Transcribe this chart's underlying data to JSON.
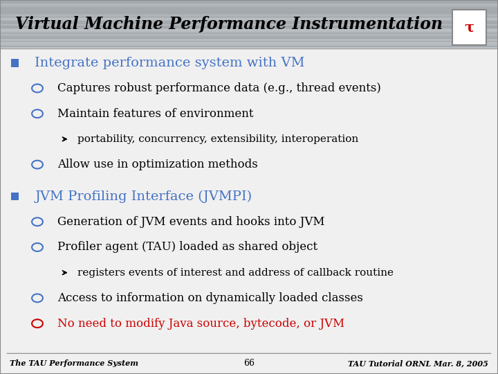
{
  "title": "Virtual Machine Performance Instrumentation",
  "title_color": "#000000",
  "title_bg_color": "#b8bec4",
  "slide_bg_color": "#f0f0f0",
  "footer_left": "The TAU Performance System",
  "footer_center": "66",
  "footer_right": "TAU Tutorial ORNL Mar. 8, 2005",
  "blue_color": "#4472c4",
  "red_color": "#cc0000",
  "content": [
    {
      "level": 1,
      "color": "#4472c4",
      "text": "Integrate performance system with VM",
      "marker": "square"
    },
    {
      "level": 2,
      "color": "#000000",
      "text": "Captures robust performance data (e.g., thread events)",
      "marker": "circle"
    },
    {
      "level": 2,
      "color": "#000000",
      "text": "Maintain features of environment",
      "marker": "circle"
    },
    {
      "level": 3,
      "color": "#000000",
      "text": "portability, concurrency, extensibility, interoperation",
      "marker": "arrow"
    },
    {
      "level": 2,
      "color": "#000000",
      "text": "Allow use in optimization methods",
      "marker": "circle"
    },
    {
      "level": 1,
      "color": "#4472c4",
      "text": "JVM Profiling Interface (JVMPI)",
      "marker": "square"
    },
    {
      "level": 2,
      "color": "#000000",
      "text": "Generation of JVM events and hooks into JVM",
      "marker": "circle"
    },
    {
      "level": 2,
      "color": "#000000",
      "text": "Profiler agent (TAU) loaded as shared object",
      "marker": "circle"
    },
    {
      "level": 3,
      "color": "#000000",
      "text": "registers events of interest and address of callback routine",
      "marker": "arrow"
    },
    {
      "level": 2,
      "color": "#000000",
      "text": "Access to information on dynamically loaded classes",
      "marker": "circle"
    },
    {
      "level": 2,
      "color": "#cc0000",
      "text": "No need to modify Java source, bytecode, or JVM",
      "marker": "circle_red"
    }
  ]
}
